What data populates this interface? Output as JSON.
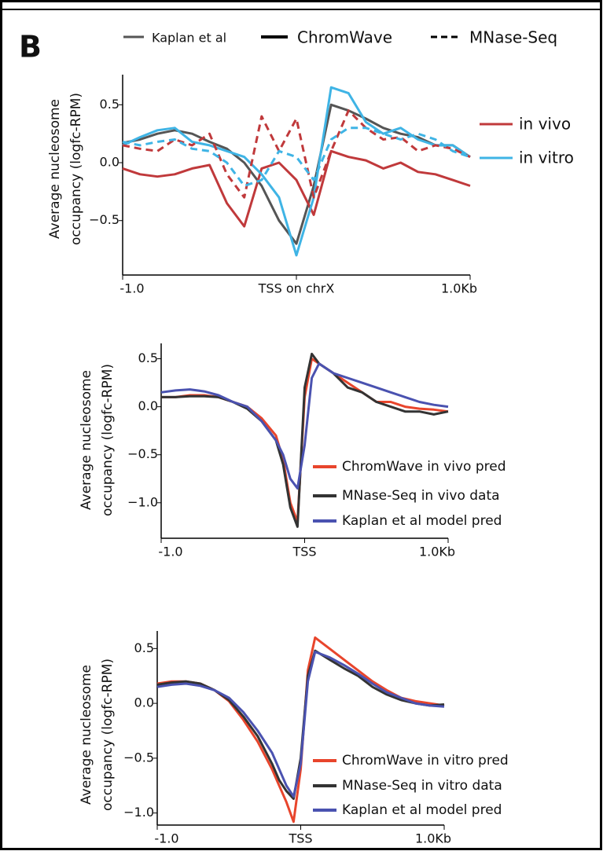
{
  "panel_label": "B",
  "chart_data": [
    {
      "type": "line",
      "ylabel": [
        "Average nucleosome",
        "occupancy (logfc-RPM)"
      ],
      "x": [
        -1,
        -0.9,
        -0.8,
        -0.7,
        -0.6,
        -0.5,
        -0.4,
        -0.3,
        -0.2,
        -0.1,
        0,
        0.1,
        0.2,
        0.3,
        0.4,
        0.5,
        0.6,
        0.7,
        0.8,
        0.9,
        1
      ],
      "xlim": [
        -1,
        1
      ],
      "xticks": [
        {
          "value": -1,
          "label": "-1.0"
        },
        {
          "value": 0,
          "label": "TSS on chrX"
        },
        {
          "value": 1,
          "label": "1.0Kb"
        }
      ],
      "ylim": [
        -0.97,
        0.76
      ],
      "yticks": [
        0.5,
        {
          "value": 0,
          "label": "0.0"
        },
        {
          "value": -0.5,
          "label": "−0.5"
        }
      ],
      "style_legend": [
        {
          "label": "Kaplan et al",
          "color": "#555555",
          "dash": false
        },
        {
          "label": "ChromWave",
          "color": "#000000",
          "dash": false
        },
        {
          "label": "MNase-Seq",
          "color": "#000000",
          "dash": true
        }
      ],
      "color_legend": [
        {
          "label": "in vivo",
          "color": "#c0393b"
        },
        {
          "label": "in vitro",
          "color": "#3fb4e5"
        }
      ],
      "series": [
        {
          "color": "#555555",
          "dash": false,
          "values": [
            0.17,
            0.2,
            0.25,
            0.28,
            0.25,
            0.18,
            0.12,
            0.0,
            -0.2,
            -0.5,
            -0.7,
            -0.2,
            0.5,
            0.45,
            0.38,
            0.3,
            0.25,
            0.22,
            0.15,
            0.15,
            0.05
          ]
        },
        {
          "color": "#c0393b",
          "dash": false,
          "values": [
            -0.05,
            -0.1,
            -0.12,
            -0.1,
            -0.05,
            -0.02,
            -0.35,
            -0.55,
            -0.05,
            0.0,
            -0.15,
            -0.45,
            0.1,
            0.05,
            0.02,
            -0.05,
            0.0,
            -0.08,
            -0.1,
            -0.15,
            -0.2
          ]
        },
        {
          "color": "#3fb4e5",
          "dash": false,
          "values": [
            0.15,
            0.22,
            0.28,
            0.3,
            0.18,
            0.15,
            0.1,
            0.05,
            -0.1,
            -0.3,
            -0.8,
            -0.3,
            0.65,
            0.6,
            0.35,
            0.25,
            0.3,
            0.2,
            0.15,
            0.15,
            0.05
          ]
        },
        {
          "color": "#c0393b",
          "dash": true,
          "values": [
            0.15,
            0.12,
            0.1,
            0.2,
            0.15,
            0.25,
            -0.1,
            -0.3,
            0.4,
            0.1,
            0.38,
            -0.3,
            0.1,
            0.45,
            0.3,
            0.2,
            0.22,
            0.1,
            0.15,
            0.12,
            0.05
          ]
        },
        {
          "color": "#3fb4e5",
          "dash": true,
          "values": [
            0.18,
            0.15,
            0.18,
            0.2,
            0.12,
            0.1,
            0.0,
            -0.2,
            -0.15,
            0.1,
            0.05,
            -0.15,
            0.2,
            0.3,
            0.3,
            0.25,
            0.2,
            0.25,
            0.2,
            0.1,
            0.05
          ]
        }
      ]
    },
    {
      "type": "line",
      "ylabel": [
        "Average nucleosome",
        "occupancy (logfc-RPM)"
      ],
      "x": [
        -1,
        -0.9,
        -0.8,
        -0.7,
        -0.6,
        -0.5,
        -0.4,
        -0.3,
        -0.2,
        -0.15,
        -0.1,
        -0.05,
        0,
        0.05,
        0.1,
        0.2,
        0.3,
        0.4,
        0.5,
        0.6,
        0.7,
        0.8,
        0.9,
        1
      ],
      "xlim": [
        -1,
        1
      ],
      "xticks": [
        {
          "value": -1,
          "label": "-1.0"
        },
        {
          "value": 0,
          "label": "TSS"
        },
        {
          "value": 1,
          "label": "1.0Kb"
        }
      ],
      "ylim": [
        -1.37,
        0.66
      ],
      "yticks": [
        0.5,
        {
          "value": 0,
          "label": "0.0"
        },
        {
          "value": -0.5,
          "label": "−0.5"
        },
        {
          "value": -1,
          "label": "−1.0"
        }
      ],
      "series": [
        {
          "name": "ChromWave in vivo pred",
          "color": "#e8452c",
          "values": [
            0.1,
            0.1,
            0.12,
            0.12,
            0.1,
            0.05,
            0.0,
            -0.12,
            -0.3,
            -0.55,
            -1.0,
            -1.2,
            0.1,
            0.5,
            0.45,
            0.35,
            0.25,
            0.15,
            0.05,
            0.05,
            0.0,
            -0.02,
            -0.03,
            -0.05
          ]
        },
        {
          "name": "MNase-Seq in vivo data",
          "color": "#333333",
          "values": [
            0.1,
            0.1,
            0.11,
            0.11,
            0.1,
            0.05,
            -0.02,
            -0.15,
            -0.35,
            -0.6,
            -1.05,
            -1.25,
            0.2,
            0.55,
            0.45,
            0.35,
            0.2,
            0.15,
            0.05,
            0.0,
            -0.05,
            -0.05,
            -0.08,
            -0.05
          ]
        },
        {
          "name": "Kaplan et al model pred",
          "color": "#4a52b0",
          "values": [
            0.15,
            0.17,
            0.18,
            0.16,
            0.12,
            0.05,
            0.0,
            -0.15,
            -0.35,
            -0.5,
            -0.75,
            -0.85,
            -0.4,
            0.3,
            0.45,
            0.35,
            0.3,
            0.25,
            0.2,
            0.15,
            0.1,
            0.05,
            0.02,
            0.0
          ]
        }
      ]
    },
    {
      "type": "line",
      "ylabel": [
        "Average nucleosome",
        "occupancy (logfc-RPM)"
      ],
      "x": [
        -1,
        -0.9,
        -0.8,
        -0.7,
        -0.6,
        -0.5,
        -0.4,
        -0.3,
        -0.2,
        -0.15,
        -0.1,
        -0.05,
        0,
        0.05,
        0.1,
        0.2,
        0.3,
        0.4,
        0.5,
        0.6,
        0.7,
        0.8,
        0.9,
        1
      ],
      "xlim": [
        -1,
        1
      ],
      "xticks": [
        {
          "value": -1,
          "label": "-1.0"
        },
        {
          "value": 0,
          "label": "TSS"
        },
        {
          "value": 1,
          "label": "1.0Kb"
        }
      ],
      "ylim": [
        -1.11,
        0.66
      ],
      "yticks": [
        0.5,
        {
          "value": 0,
          "label": "0.0"
        },
        {
          "value": -0.5,
          "label": "−0.5"
        },
        {
          "value": -1,
          "label": "−1.0"
        }
      ],
      "series": [
        {
          "name": "ChromWave in vitro  pred",
          "color": "#e8452c",
          "values": [
            0.18,
            0.2,
            0.2,
            0.18,
            0.12,
            0.02,
            -0.15,
            -0.35,
            -0.6,
            -0.75,
            -0.9,
            -1.08,
            -0.6,
            0.3,
            0.6,
            0.5,
            0.4,
            0.3,
            0.2,
            0.12,
            0.05,
            0.02,
            0.0,
            -0.02
          ]
        },
        {
          "name": "MNase-Seq in vitro data",
          "color": "#333333",
          "values": [
            0.17,
            0.19,
            0.2,
            0.18,
            0.12,
            0.03,
            -0.12,
            -0.3,
            -0.55,
            -0.7,
            -0.8,
            -0.87,
            -0.5,
            0.25,
            0.48,
            0.4,
            0.32,
            0.25,
            0.15,
            0.08,
            0.03,
            0.0,
            -0.02,
            -0.01
          ]
        },
        {
          "name": "Kaplan et al model pred",
          "color": "#4a52b0",
          "values": [
            0.15,
            0.17,
            0.18,
            0.16,
            0.12,
            0.05,
            -0.08,
            -0.25,
            -0.45,
            -0.6,
            -0.75,
            -0.85,
            -0.55,
            0.2,
            0.47,
            0.42,
            0.35,
            0.27,
            0.18,
            0.1,
            0.05,
            0.0,
            -0.02,
            -0.03
          ]
        }
      ]
    }
  ]
}
